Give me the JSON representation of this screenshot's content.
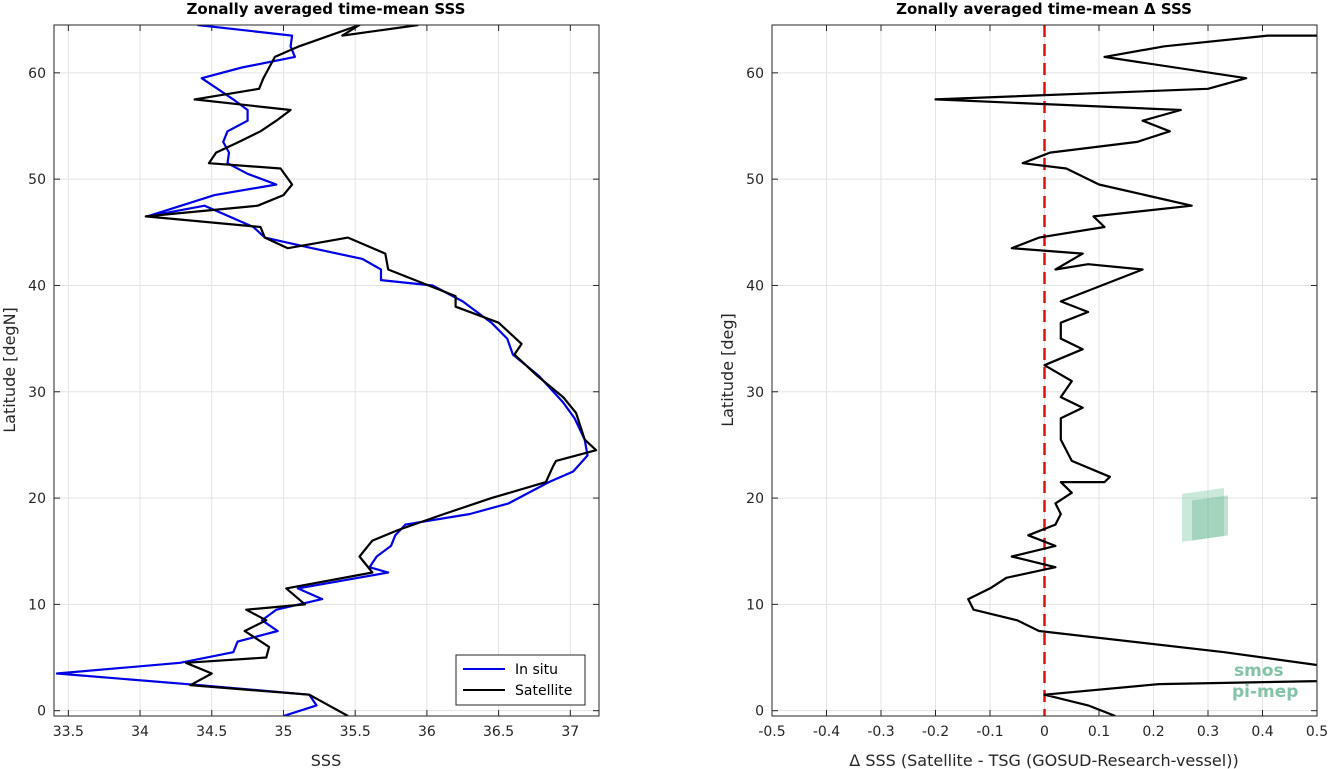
{
  "chart_data": [
    {
      "type": "line",
      "title": "Zonally averaged time-mean SSS",
      "xlabel": "SSS",
      "ylabel": "Latitude [degN]",
      "xlim": [
        33.4,
        37.2
      ],
      "ylim": [
        -0.5,
        64.5
      ],
      "xticks": [
        33.5,
        34,
        34.5,
        35,
        35.5,
        36,
        36.5,
        37
      ],
      "xtick_labels": [
        "33.5",
        "34",
        "34.5",
        "35",
        "35.5",
        "36",
        "36.5",
        "37"
      ],
      "yticks": [
        0,
        10,
        20,
        30,
        40,
        50,
        60
      ],
      "ytick_labels": [
        "0",
        "10",
        "20",
        "30",
        "40",
        "50",
        "60"
      ],
      "grid": true,
      "legend": "bottom-right",
      "series": [
        {
          "name": "In situ",
          "color": "#0000e6",
          "x": [
            35.0,
            35.23,
            35.18,
            34.42,
            33.42,
            34.28,
            34.65,
            34.68,
            34.96,
            34.85,
            34.95,
            35.27,
            35.1,
            35.73,
            35.6,
            35.65,
            35.75,
            35.78,
            35.85,
            36.3,
            36.57,
            36.85,
            37.02,
            37.12,
            37.1,
            37.03,
            36.95,
            36.78,
            36.6,
            36.56,
            36.45,
            36.25,
            36.04,
            35.68,
            35.68,
            35.55,
            35.2,
            34.87,
            34.79,
            34.45,
            34.05,
            34.52,
            34.95,
            34.75,
            34.61,
            34.62,
            34.58,
            34.61,
            34.75,
            34.75,
            34.65,
            34.43,
            34.71,
            35.08,
            35.05,
            35.06,
            34.4
          ],
          "y": [
            -0.5,
            0.5,
            1.5,
            2.4,
            3.5,
            4.5,
            5.5,
            6.5,
            7.5,
            8.5,
            9.5,
            10.5,
            11.5,
            13.0,
            13.5,
            14.5,
            15.5,
            16.5,
            17.5,
            18.5,
            19.5,
            21.5,
            22.5,
            24.0,
            25.5,
            27.5,
            29.0,
            31.5,
            33.5,
            35.0,
            36.5,
            38.5,
            40.0,
            40.5,
            41.5,
            42.5,
            43.5,
            44.5,
            45.5,
            47.5,
            46.5,
            48.5,
            49.5,
            50.5,
            51.5,
            52.5,
            53.5,
            54.5,
            55.5,
            56.5,
            57.5,
            59.5,
            60.5,
            61.5,
            62.5,
            63.5,
            64.5
          ]
        },
        {
          "name": "Satellite",
          "color": "#000000",
          "x": [
            35.45,
            35.18,
            34.35,
            34.5,
            34.32,
            34.88,
            34.9,
            34.73,
            34.88,
            34.74,
            35.15,
            35.02,
            35.62,
            35.53,
            35.62,
            35.8,
            36.12,
            36.45,
            36.83,
            36.88,
            36.9,
            37.18,
            37.1,
            37.04,
            36.95,
            36.77,
            36.61,
            36.66,
            36.5,
            36.2,
            36.2,
            35.73,
            35.71,
            35.45,
            35.03,
            34.87,
            34.84,
            34.04,
            34.82,
            35.0,
            35.06,
            34.98,
            34.48,
            34.53,
            34.69,
            34.84,
            34.95,
            35.05,
            34.38,
            34.83,
            34.86,
            34.94,
            35.11,
            35.53,
            35.41,
            35.94
          ],
          "y": [
            -0.5,
            1.5,
            2.4,
            3.5,
            4.5,
            5.0,
            6.0,
            7.5,
            8.5,
            9.5,
            10.0,
            11.5,
            13.0,
            14.5,
            16.0,
            17.0,
            18.5,
            20.0,
            21.5,
            23.0,
            23.5,
            24.5,
            25.5,
            28.0,
            29.5,
            31.5,
            33.5,
            34.5,
            36.5,
            38.0,
            39.0,
            41.5,
            43.0,
            44.5,
            43.5,
            44.5,
            45.5,
            46.5,
            47.5,
            48.5,
            49.5,
            51.0,
            51.5,
            52.5,
            53.5,
            54.5,
            55.5,
            56.5,
            57.5,
            58.5,
            59.5,
            61.5,
            62.5,
            64.5,
            63.5,
            64.5
          ]
        }
      ]
    },
    {
      "type": "line",
      "title": "Zonally averaged time-mean Δ SSS",
      "xlabel": "Δ SSS (Satellite - TSG (GOSUD-Research-vessel))",
      "ylabel": "Latitude [deg]",
      "xlim": [
        -0.5,
        0.5
      ],
      "ylim": [
        -0.5,
        64.5
      ],
      "xticks": [
        -0.5,
        -0.4,
        -0.3,
        -0.2,
        -0.1,
        0,
        0.1,
        0.2,
        0.3,
        0.4,
        0.5
      ],
      "xtick_labels": [
        "-0.5",
        "-0.4",
        "-0.3",
        "-0.2",
        "-0.1",
        "0",
        "0.1",
        "0.2",
        "0.3",
        "0.4",
        "0.5"
      ],
      "yticks": [
        0,
        10,
        20,
        30,
        40,
        50,
        60
      ],
      "ytick_labels": [
        "0",
        "10",
        "20",
        "30",
        "40",
        "50",
        "60"
      ],
      "grid": true,
      "reference_line": {
        "x": 0,
        "style": "dashed",
        "color": "#e01010"
      },
      "series": [
        {
          "color": "#000000",
          "x": [
            0.13,
            0.08,
            0.0,
            0.21,
            0.52,
            0.5,
            0.33,
            -0.01,
            -0.05,
            -0.13,
            -0.14,
            -0.1,
            -0.07,
            0.02,
            -0.06,
            0.02,
            -0.03,
            0.02,
            0.03,
            0.02,
            0.05,
            0.03,
            0.11,
            0.12,
            0.05,
            0.04,
            0.03,
            0.03,
            0.07,
            0.03,
            0.05,
            0.0,
            0.07,
            0.03,
            0.03,
            0.08,
            0.03,
            0.18,
            0.08,
            0.02,
            0.07,
            -0.06,
            -0.01,
            0.11,
            0.09,
            0.27,
            0.1,
            0.04,
            -0.04,
            0.01,
            0.17,
            0.23,
            0.18,
            0.25,
            -0.2,
            0.3,
            0.37,
            0.11,
            0.22,
            0.41,
            0.5
          ],
          "y": [
            -0.5,
            0.5,
            1.5,
            2.5,
            2.8,
            4.3,
            5.5,
            7.5,
            8.5,
            9.5,
            10.5,
            11.5,
            12.5,
            13.5,
            14.5,
            15.5,
            16.5,
            17.5,
            18.5,
            19.5,
            20.5,
            21.5,
            21.5,
            22.0,
            23.5,
            24.5,
            25.5,
            27.5,
            28.5,
            29.5,
            31.0,
            32.5,
            34.0,
            35.0,
            36.5,
            37.5,
            38.5,
            41.5,
            42.0,
            41.5,
            43.0,
            43.5,
            44.5,
            45.5,
            46.5,
            47.5,
            49.5,
            51.0,
            51.5,
            52.5,
            53.5,
            54.5,
            55.5,
            56.5,
            57.5,
            58.5,
            59.5,
            61.5,
            62.5,
            63.5,
            63.5
          ]
        }
      ]
    }
  ],
  "legend": {
    "items": [
      "In situ",
      "Satellite"
    ]
  },
  "watermark": {
    "line1": "smos",
    "line2": "pi-mep"
  }
}
